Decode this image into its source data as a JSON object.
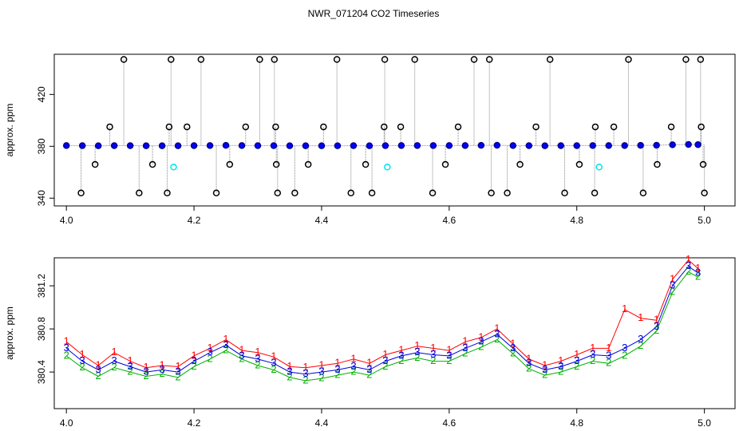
{
  "title": "NWR_071204  CO2 Timeseries",
  "chart_data": [
    {
      "type": "scatter",
      "ylabel": "approx. ppm",
      "xlim": [
        3.981,
        5.048
      ],
      "ylim": [
        334,
        451
      ],
      "xticks": [
        {
          "value": 4,
          "label": "4.0"
        },
        4.2,
        4.4,
        4.6,
        4.8,
        {
          "value": 5,
          "label": "5.0"
        }
      ],
      "yticks": [
        340,
        380,
        420
      ],
      "series": [
        {
          "color": "#0000ff",
          "edge": "#00008b",
          "marker": "circle",
          "line_color": "#888888",
          "x": [
            4.0,
            4.025,
            4.05,
            4.075,
            4.1,
            4.125,
            4.15,
            4.175,
            4.2,
            4.225,
            4.25,
            4.275,
            4.3,
            4.325,
            4.35,
            4.375,
            4.4,
            4.425,
            4.45,
            4.475,
            4.5,
            4.525,
            4.55,
            4.575,
            4.6,
            4.625,
            4.65,
            4.675,
            4.7,
            4.725,
            4.75,
            4.775,
            4.8,
            4.825,
            4.85,
            4.875,
            4.9,
            4.925,
            4.95,
            4.975,
            4.99
          ],
          "values": [
            380.6,
            380.5,
            380.4,
            380.5,
            380.5,
            380.4,
            380.4,
            380.4,
            380.5,
            380.6,
            380.7,
            380.6,
            380.5,
            380.5,
            380.4,
            380.4,
            380.4,
            380.4,
            380.5,
            380.4,
            380.5,
            380.6,
            380.6,
            380.6,
            380.6,
            380.6,
            380.7,
            380.8,
            380.6,
            380.5,
            380.4,
            380.5,
            380.5,
            380.6,
            380.6,
            380.6,
            380.7,
            380.8,
            381.2,
            381.4,
            381.3
          ]
        },
        {
          "color": "none",
          "edge": "#000000",
          "marker": "circle",
          "spikes": true,
          "x": [
            4.023,
            4.045,
            4.068,
            4.09,
            4.114,
            4.135,
            4.158,
            4.161,
            4.164,
            4.189,
            4.211,
            4.235,
            4.256,
            4.281,
            4.303,
            4.326,
            4.328,
            4.329,
            4.331,
            4.358,
            4.379,
            4.403,
            4.424,
            4.446,
            4.469,
            4.479,
            4.498,
            4.499,
            4.524,
            4.546,
            4.574,
            4.594,
            4.614,
            4.639,
            4.663,
            4.666,
            4.691,
            4.711,
            4.736,
            4.758,
            4.781,
            4.804,
            4.828,
            4.829,
            4.858,
            4.881,
            4.904,
            4.926,
            4.948,
            4.971,
            4.994,
            4.995,
            4.998,
            5.0
          ],
          "values": [
            344,
            366,
            395,
            447,
            344,
            366,
            344,
            395,
            447,
            395,
            447,
            344,
            366,
            395,
            447,
            447,
            395,
            366,
            344,
            344,
            366,
            395,
            447,
            344,
            366,
            344,
            395,
            447,
            395,
            447,
            344,
            366,
            395,
            447,
            447,
            344,
            344,
            366,
            395,
            447,
            344,
            366,
            344,
            395,
            395,
            447,
            344,
            366,
            395,
            447,
            447,
            395,
            366,
            344
          ]
        },
        {
          "color": "none",
          "edge": "#00e5ee",
          "marker": "circle",
          "x": [
            4.168,
            4.503,
            4.835
          ],
          "values": [
            364,
            364,
            364
          ]
        }
      ]
    },
    {
      "type": "line",
      "ylabel": "approx. ppm",
      "xlim": [
        3.981,
        5.048
      ],
      "ylim": [
        380.06,
        381.46
      ],
      "xticks": [
        {
          "value": 4,
          "label": "4.0"
        },
        4.2,
        4.4,
        4.6,
        4.8,
        {
          "value": 5,
          "label": "5.0"
        }
      ],
      "yticks": [
        380.4,
        380.8,
        381.2
      ],
      "x": [
        4.0,
        4.025,
        4.05,
        4.075,
        4.1,
        4.125,
        4.15,
        4.175,
        4.2,
        4.225,
        4.25,
        4.275,
        4.3,
        4.325,
        4.35,
        4.375,
        4.4,
        4.425,
        4.45,
        4.475,
        4.5,
        4.525,
        4.55,
        4.575,
        4.6,
        4.625,
        4.65,
        4.675,
        4.7,
        4.725,
        4.75,
        4.775,
        4.8,
        4.825,
        4.85,
        4.875,
        4.9,
        4.925,
        4.95,
        4.975,
        4.99
      ],
      "series": [
        {
          "marker": "1",
          "color": "#ff0000",
          "values": [
            380.68,
            380.56,
            380.46,
            380.58,
            380.5,
            380.44,
            380.46,
            380.45,
            380.55,
            380.62,
            380.7,
            380.6,
            380.58,
            380.54,
            380.45,
            380.44,
            380.46,
            380.48,
            380.52,
            380.48,
            380.56,
            380.6,
            380.64,
            380.62,
            380.6,
            380.68,
            380.72,
            380.8,
            380.66,
            380.52,
            380.46,
            380.5,
            380.56,
            380.62,
            380.62,
            380.98,
            380.9,
            380.88,
            381.26,
            381.44,
            381.36
          ]
        },
        {
          "marker": "2",
          "color": "#00b000",
          "values": [
            380.55,
            380.44,
            380.36,
            380.44,
            380.4,
            380.36,
            380.38,
            380.35,
            380.45,
            380.52,
            380.6,
            380.52,
            380.46,
            380.42,
            380.35,
            380.32,
            380.34,
            380.37,
            380.4,
            380.37,
            380.45,
            380.5,
            380.53,
            380.5,
            380.5,
            380.57,
            380.63,
            380.7,
            380.57,
            380.43,
            380.37,
            380.4,
            380.45,
            380.5,
            380.48,
            380.55,
            380.64,
            380.78,
            381.14,
            381.33,
            381.28
          ]
        },
        {
          "marker": "3",
          "color": "#0000dd",
          "values": [
            380.62,
            380.5,
            380.42,
            380.5,
            380.45,
            380.4,
            380.42,
            380.4,
            380.5,
            380.58,
            380.65,
            380.55,
            380.52,
            380.48,
            380.4,
            380.38,
            380.4,
            380.42,
            380.45,
            380.42,
            380.5,
            380.55,
            380.58,
            380.56,
            380.55,
            380.62,
            380.68,
            380.75,
            380.62,
            380.48,
            380.42,
            380.45,
            380.5,
            380.56,
            380.55,
            380.62,
            380.7,
            380.82,
            381.2,
            381.38,
            381.32
          ]
        }
      ]
    }
  ]
}
